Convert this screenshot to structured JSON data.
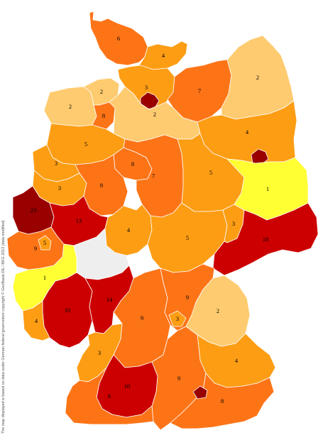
{
  "map": {
    "palette": {
      "v1": "#ffff33",
      "v2": "#fecb70",
      "v3": "#fd9d14",
      "v4": "#fd9d14",
      "v5": "#fd9d14",
      "v6": "#fd7417",
      "v7": "#fd7417",
      "v8": "#fd7417",
      "v9": "#fd7417",
      "v10": "#cc0000",
      "v13": "#cc0000",
      "v14": "#cc0000",
      "v18": "#cc0000",
      "v23": "#990000",
      "nodata": "#eeeeee",
      "city_dark": "#990000"
    },
    "regions": [
      {
        "id": "schleswig-north",
        "value": "6"
      },
      {
        "id": "ostholstein",
        "value": "4"
      },
      {
        "id": "hamburg-ring",
        "value": "3"
      },
      {
        "id": "vorpommern",
        "value": "2"
      },
      {
        "id": "mecklenburg-west",
        "value": "7"
      },
      {
        "id": "weser-ems-north",
        "value": "2"
      },
      {
        "id": "bremerhaven",
        "value": "2"
      },
      {
        "id": "bremen-area",
        "value": "8"
      },
      {
        "id": "lueneburg",
        "value": "2"
      },
      {
        "id": "brandenburg",
        "value": "4"
      },
      {
        "id": "emsland",
        "value": "5"
      },
      {
        "id": "muensterland",
        "value": "3"
      },
      {
        "id": "hannover",
        "value": "8"
      },
      {
        "id": "braunschweig",
        "value": "7"
      },
      {
        "id": "sachsen-anhalt",
        "value": "5"
      },
      {
        "id": "sachsen-north",
        "value": "1"
      },
      {
        "id": "niederrhein",
        "value": "3"
      },
      {
        "id": "ostwestfalen",
        "value": "8"
      },
      {
        "id": "ruhr",
        "value": "23"
      },
      {
        "id": "sauerland",
        "value": "13"
      },
      {
        "id": "nordhessen",
        "value": "4"
      },
      {
        "id": "thueringen",
        "value": "5"
      },
      {
        "id": "leipzig",
        "value": "3"
      },
      {
        "id": "dresden-chemnitz",
        "value": "18"
      },
      {
        "id": "koeln-bonn",
        "value": "9"
      },
      {
        "id": "siegen",
        "value": "5"
      },
      {
        "id": "eifel",
        "value": "1"
      },
      {
        "id": "rheinhessen",
        "value": "10"
      },
      {
        "id": "rhein-main",
        "value": "14"
      },
      {
        "id": "saar",
        "value": "4"
      },
      {
        "id": "oberfranken",
        "value": "9"
      },
      {
        "id": "nuernberg",
        "value": "3"
      },
      {
        "id": "oberpfalz",
        "value": "2"
      },
      {
        "id": "niederbayern",
        "value": "4"
      },
      {
        "id": "karlsruhe",
        "value": "3"
      },
      {
        "id": "heilbronn",
        "value": "9"
      },
      {
        "id": "stuttgart",
        "value": "10"
      },
      {
        "id": "ulm-augsburg",
        "value": "9"
      },
      {
        "id": "muenchen",
        "value": "8"
      },
      {
        "id": "freiburg",
        "value": "6"
      }
    ],
    "credit": "The map displayed is based on data under German federal government copyright © GeoBasis-DE / BKG 2013 (data modified)"
  }
}
